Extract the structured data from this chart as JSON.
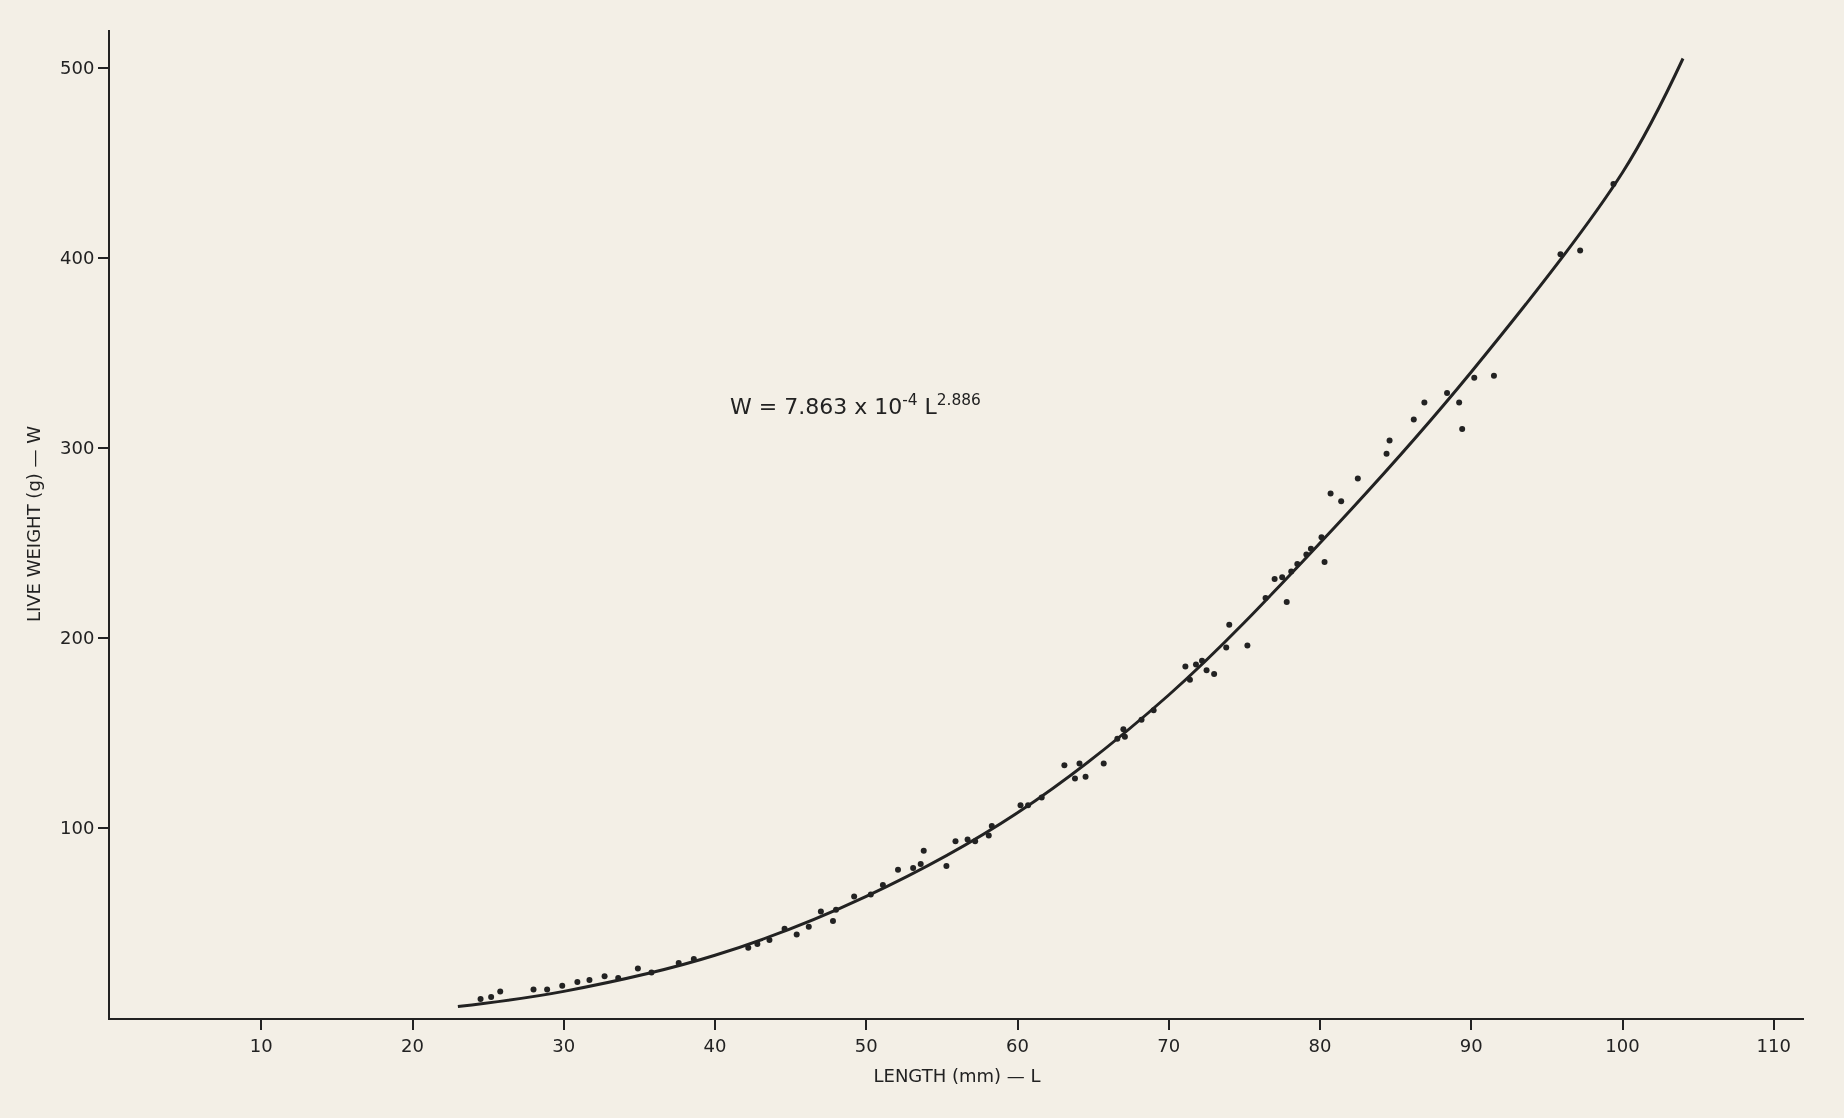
{
  "chart_data": {
    "type": "scatter",
    "xlabel": "LENGTH (mm) — L",
    "ylabel": "LIVE WEIGHT (g) — W",
    "annotations": [
      "W = 7.863 x 10$^{-4}$ L$^{2.886}$"
    ],
    "xlim": [
      0,
      112
    ],
    "ylim": [
      0,
      520
    ],
    "xticks": [
      10,
      20,
      30,
      40,
      50,
      60,
      70,
      80,
      90,
      100,
      110
    ],
    "yticks": [
      100,
      200,
      300,
      400,
      500
    ],
    "grid": false,
    "series": [
      {
        "color": "#222222",
        "marker": "circle",
        "x": [
          24.5,
          25.2,
          25.8,
          28.0,
          28.9,
          29.9,
          30.9,
          31.7,
          32.7,
          33.6,
          34.9,
          35.8,
          37.6,
          38.6,
          42.2,
          42.8,
          43.6,
          44.6,
          45.4,
          46.2,
          47.0,
          47.8,
          48.0,
          49.2,
          50.3,
          51.1,
          52.1,
          53.1,
          53.6,
          53.8,
          55.3,
          55.9,
          56.7,
          57.2,
          58.1,
          58.3,
          60.2,
          60.7,
          61.6,
          63.1,
          63.8,
          64.1,
          64.5,
          65.7,
          66.6,
          67.1,
          67.0,
          68.2,
          69.0,
          71.1,
          71.4,
          71.8,
          72.2,
          72.5,
          73.0,
          73.8,
          74.0,
          75.2,
          76.4,
          77.0,
          77.5,
          77.8,
          78.1,
          78.5,
          79.1,
          79.4,
          80.1,
          80.3,
          80.7,
          81.4,
          82.5,
          84.4,
          84.6,
          86.2,
          86.9,
          88.4,
          89.2,
          89.4,
          90.2,
          91.5,
          95.9,
          97.2,
          99.4
        ],
        "values": [
          10,
          11,
          14,
          15,
          15,
          17,
          19,
          20,
          22,
          21,
          26,
          24,
          29,
          31,
          37,
          39,
          41,
          47,
          44,
          48,
          56,
          51,
          57,
          64,
          65,
          70,
          78,
          79,
          81,
          88,
          80,
          93,
          94,
          93,
          96,
          101,
          112,
          112,
          116,
          133,
          126,
          134,
          127,
          134,
          147,
          148,
          152,
          157,
          162,
          185,
          178,
          186,
          188,
          183,
          181,
          195,
          207,
          196,
          221,
          231,
          232,
          219,
          235,
          239,
          244,
          247,
          253,
          240,
          276,
          272,
          284,
          297,
          304,
          315,
          324,
          329,
          324,
          310,
          337,
          338,
          402,
          404,
          439
        ]
      },
      {
        "type": "line",
        "color": "#222222",
        "line_style": "solid",
        "x": [
          23,
          30,
          40,
          50,
          60,
          70,
          80,
          90,
          100,
          104
        ],
        "values": [
          6,
          14,
          33,
          64,
          108,
          170,
          250,
          340,
          445,
          505
        ]
      }
    ]
  }
}
